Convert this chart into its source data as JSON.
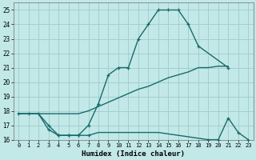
{
  "xlabel": "Humidex (Indice chaleur)",
  "bg_color": "#c2e8e8",
  "grid_color": "#a0cccc",
  "line_color": "#1a6b6b",
  "xlim": [
    -0.5,
    23.5
  ],
  "ylim": [
    16,
    25.5
  ],
  "yticks": [
    16,
    17,
    18,
    19,
    20,
    21,
    22,
    23,
    24,
    25
  ],
  "xticks": [
    0,
    1,
    2,
    3,
    4,
    5,
    6,
    7,
    8,
    9,
    10,
    11,
    12,
    13,
    14,
    15,
    16,
    17,
    18,
    19,
    20,
    21,
    22,
    23
  ],
  "line1_x": [
    0,
    1,
    2,
    3,
    4,
    5,
    6,
    7,
    8,
    9,
    10,
    11,
    12,
    13,
    14,
    15,
    16,
    17,
    18,
    21
  ],
  "line1_y": [
    17.8,
    17.8,
    17.8,
    17.0,
    16.3,
    16.3,
    16.3,
    17.0,
    18.5,
    20.5,
    21.0,
    21.0,
    23.0,
    24.0,
    25.0,
    25.0,
    25.0,
    24.0,
    22.5,
    21.0
  ],
  "line2_x": [
    0,
    1,
    2,
    3,
    4,
    5,
    6,
    7,
    8,
    9,
    10,
    11,
    12,
    13,
    14,
    15,
    16,
    17,
    18,
    19,
    20,
    21
  ],
  "line2_y": [
    17.8,
    17.8,
    17.8,
    17.8,
    17.8,
    17.8,
    17.8,
    18.0,
    18.3,
    18.6,
    18.9,
    19.2,
    19.5,
    19.7,
    20.0,
    20.3,
    20.5,
    20.7,
    21.0,
    21.0,
    21.1,
    21.1
  ],
  "line3_x": [
    0,
    1,
    2,
    3,
    4,
    5,
    6,
    7,
    8,
    9,
    10,
    11,
    12,
    13,
    14,
    15,
    16,
    17,
    18,
    19,
    20,
    21,
    22,
    23
  ],
  "line3_y": [
    17.8,
    17.8,
    17.8,
    16.7,
    16.3,
    16.3,
    16.3,
    16.3,
    16.5,
    16.5,
    16.5,
    16.5,
    16.5,
    16.5,
    16.5,
    16.4,
    16.3,
    16.2,
    16.1,
    16.0,
    16.0,
    17.5,
    16.5,
    16.0
  ],
  "line3_marker_x": [
    3,
    4,
    5,
    6,
    7,
    19,
    20,
    21,
    22,
    23
  ],
  "line3_marker_y": [
    16.7,
    16.3,
    16.3,
    16.3,
    16.3,
    16.0,
    16.0,
    17.5,
    16.5,
    16.0
  ]
}
